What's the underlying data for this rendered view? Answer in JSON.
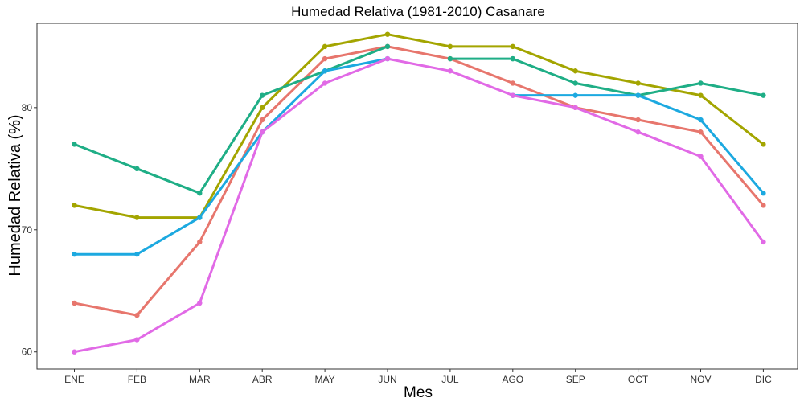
{
  "chart_data": {
    "type": "line",
    "title": "Humedad Relativa (1981-2010)  Casanare",
    "xlabel": "Mes",
    "ylabel": "Humedad Relativa   (%)",
    "categories": [
      "ENE",
      "FEB",
      "MAR",
      "ABR",
      "MAY",
      "JUN",
      "JUL",
      "AGO",
      "SEP",
      "OCT",
      "NOV",
      "DIC"
    ],
    "yticks": [
      60,
      70,
      80
    ],
    "ylim": [
      58.6,
      86.9
    ],
    "grid": false,
    "legend": "none",
    "series": [
      {
        "color": "#E7766D",
        "values": [
          64,
          63,
          69,
          79,
          84,
          85,
          84,
          82,
          80,
          79,
          78,
          72
        ]
      },
      {
        "color": "#A3A500",
        "values": [
          72,
          71,
          71,
          80,
          85,
          86,
          85,
          85,
          83,
          82,
          81,
          77
        ]
      },
      {
        "color": "#1FAE86",
        "values": [
          77,
          75,
          73,
          81,
          83,
          85,
          null,
          84,
          82,
          81,
          82,
          81
        ]
      },
      {
        "color": "#1CA9E0",
        "values": [
          68,
          68,
          71,
          78,
          83,
          84,
          null,
          81,
          81,
          81,
          79,
          73
        ]
      },
      {
        "color": "#E16AE6",
        "values": [
          60,
          61,
          64,
          78,
          82,
          84,
          83,
          81,
          80,
          78,
          76,
          69
        ]
      }
    ],
    "segments": [
      {
        "color": "#1FAE86",
        "values": [
          null,
          null,
          null,
          null,
          null,
          null,
          84,
          84,
          null,
          null,
          null,
          null
        ]
      }
    ]
  }
}
